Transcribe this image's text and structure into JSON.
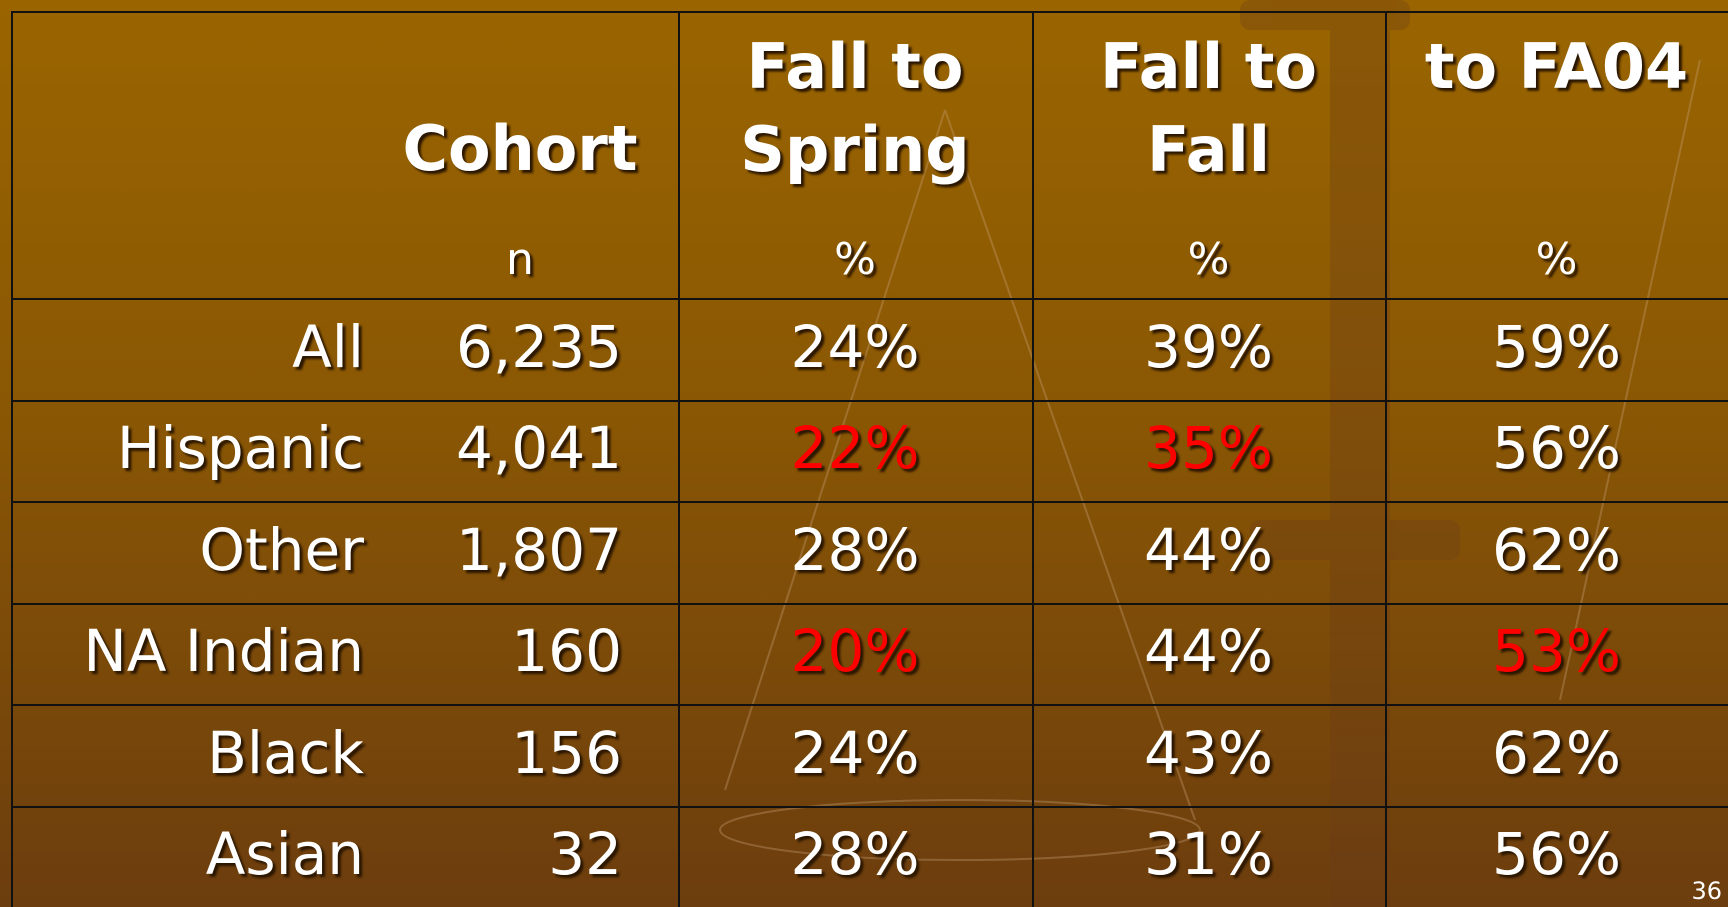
{
  "table": {
    "columns": [
      {
        "title": [
          "Cohort"
        ],
        "unit": "n"
      },
      {
        "title": [
          "Fall to",
          "Spring"
        ],
        "unit": "%"
      },
      {
        "title": [
          "Fall to",
          "Fall"
        ],
        "unit": "%"
      },
      {
        "title": [
          "to FA04"
        ],
        "unit": "%"
      }
    ],
    "rows": [
      {
        "label": "All",
        "cohort": "6,235",
        "cells": [
          {
            "text": "24%"
          },
          {
            "text": "39%"
          },
          {
            "text": "59%"
          }
        ]
      },
      {
        "label": "Hispanic",
        "cohort": "4,041",
        "cells": [
          {
            "text": "22%",
            "color": "#ff0000"
          },
          {
            "text": "35%",
            "color": "#ff0000"
          },
          {
            "text": "56%"
          }
        ]
      },
      {
        "label": "Other",
        "cohort": "1,807",
        "cells": [
          {
            "text": "28%"
          },
          {
            "text": "44%"
          },
          {
            "text": "62%"
          }
        ]
      },
      {
        "label": "NA Indian",
        "cohort": "160",
        "cells": [
          {
            "text": "20%",
            "color": "#ff0000"
          },
          {
            "text": "44%"
          },
          {
            "text": "53%",
            "color": "#ff0000"
          }
        ]
      },
      {
        "label": "Black",
        "cohort": "156",
        "cells": [
          {
            "text": "24%"
          },
          {
            "text": "43%"
          },
          {
            "text": "62%"
          }
        ]
      },
      {
        "label": "Asian",
        "cohort": "32",
        "cells": [
          {
            "text": "28%"
          },
          {
            "text": "31%"
          },
          {
            "text": "56%"
          }
        ]
      }
    ]
  },
  "slide_number": "36"
}
